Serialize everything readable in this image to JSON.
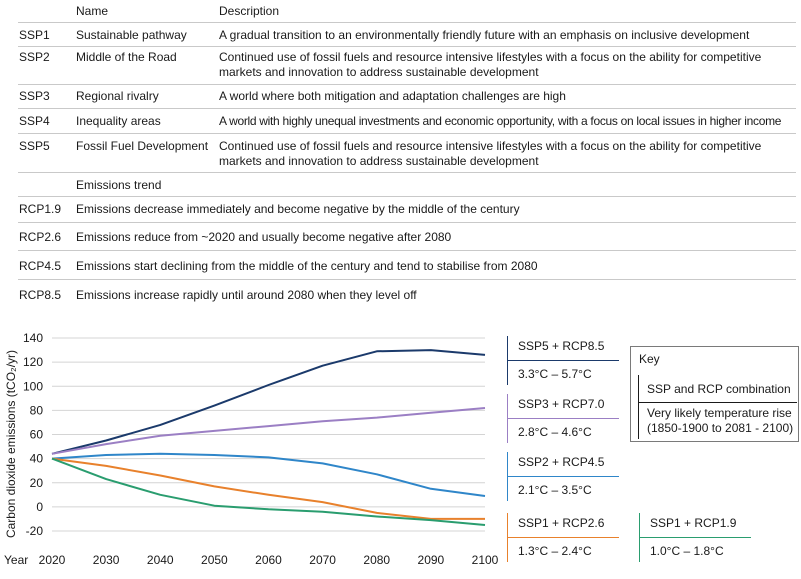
{
  "table": {
    "col_name": "Name",
    "col_desc": "Description",
    "ssp_rows": [
      {
        "code": "SSP1",
        "name": "Sustainable pathway",
        "desc": "A gradual transition to an environmentally friendly future with an emphasis on inclusive development"
      },
      {
        "code": "SSP2",
        "name": "Middle of the Road",
        "desc": "Continued use of fossil fuels and resource intensive lifestyles with a focus on the ability for competitive markets and innovation to address sustainable development"
      },
      {
        "code": "SSP3",
        "name": "Regional rivalry",
        "desc": "A world where both mitigation and adaptation challenges are high"
      },
      {
        "code": "SSP4",
        "name": "Inequality areas",
        "desc": "A world with highly unequal investments and economic opportunity, with a focus on local issues in higher income"
      },
      {
        "code": "SSP5",
        "name": "Fossil Fuel Development",
        "desc": "Continued use of fossil fuels and resource intensive lifestyles with a focus on the ability for competitive markets and innovation to address sustainable development"
      }
    ],
    "col_trend": "Emissions trend",
    "rcp_rows": [
      {
        "code": "RCP1.9",
        "desc": "Emissions decrease immediately and become negative by the middle of the century"
      },
      {
        "code": "RCP2.6",
        "desc": "Emissions reduce from ~2020 and usually become negative after 2080"
      },
      {
        "code": "RCP4.5",
        "desc": "Emissions start declining from the middle of the century and tend to stabilise from 2080"
      },
      {
        "code": "RCP8.5",
        "desc": "Emissions increase rapidly until around 2080 when they level off"
      }
    ]
  },
  "key": {
    "title": "Key",
    "combo": "SSP and RCP combination",
    "temp_line1": "Very likely temperature rise",
    "temp_line2": "(1850-1900 to 2081 - 2100)"
  },
  "chart_data": {
    "type": "line",
    "ylabel": "Carbon dioxide emissions (tCO₂/yr)",
    "xlabel": "Year",
    "x": [
      2020,
      2030,
      2040,
      2050,
      2060,
      2070,
      2080,
      2090,
      2100
    ],
    "ylim": [
      -20,
      140
    ],
    "xlim": [
      2020,
      2100
    ],
    "yticks": [
      -20,
      0,
      20,
      40,
      60,
      80,
      100,
      120,
      140
    ],
    "grid": true,
    "series": [
      {
        "name": "SSP5 + RCP8.5",
        "range": "3.3°C – 5.7°C",
        "color": "#1b3a6b",
        "values": [
          44,
          55,
          68,
          84,
          101,
          117,
          129,
          130,
          126
        ]
      },
      {
        "name": "SSP3 + RCP7.0",
        "range": "2.8°C – 4.6°C",
        "color": "#9b7fc4",
        "values": [
          44,
          52,
          59,
          63,
          67,
          71,
          74,
          78,
          82
        ]
      },
      {
        "name": "SSP2 + RCP4.5",
        "range": "2.1°C – 3.5°C",
        "color": "#2f86c9",
        "values": [
          40,
          43,
          44,
          43,
          41,
          36,
          27,
          15,
          9
        ]
      },
      {
        "name": "SSP1 + RCP2.6",
        "range": "1.3°C – 2.4°C",
        "color": "#e8812c",
        "values": [
          40,
          34,
          26,
          17,
          10,
          4,
          -5,
          -10,
          -10
        ]
      },
      {
        "name": "SSP1 + RCP1.9",
        "range": "1.0°C – 1.8°C",
        "color": "#2a9d6f",
        "values": [
          40,
          23,
          10,
          1,
          -2,
          -4,
          -8,
          -11,
          -15
        ]
      }
    ]
  }
}
